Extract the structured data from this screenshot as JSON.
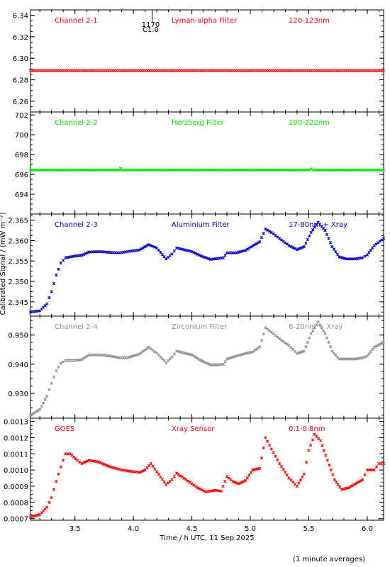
{
  "chart_data": {
    "type": "scatter",
    "xlabel": "Time / h UTC, 11 Sep 2025",
    "ylabel": "Calibrated Signal / (mW m⁻²)",
    "footnote": "(1 minute averages)",
    "x_range": [
      3.12,
      6.14
    ],
    "x_ticks": [
      "3.5",
      "4.0",
      "4.5",
      "5.0",
      "5.5",
      "6.0"
    ],
    "flare_marker": {
      "x": 4.16,
      "labels": [
        "1170",
        "C1.0"
      ]
    },
    "colors": {
      "red": "#ff0000",
      "green": "#00e000",
      "blue": "#0000cc",
      "gray": "#909090"
    },
    "panels": [
      {
        "channel": "Channel 2-1",
        "filter": "Lyman-alpha Filter",
        "band": "120-123nm",
        "color": "#ff0000",
        "ylim": [
          6.25,
          6.345
        ],
        "yticks": [
          "6.26",
          "6.28",
          "6.30",
          "6.32",
          "6.34"
        ],
        "points": [
          [
            3.12,
            6.2885
          ],
          [
            6.14,
            6.2885
          ]
        ]
      },
      {
        "channel": "Channel 2-2",
        "filter": "Herzberg Filter",
        "band": "190-222nm",
        "color": "#00e000",
        "ylim": [
          692.0,
          702.3
        ],
        "yticks": [
          "694",
          "696",
          "698",
          "700",
          "702"
        ],
        "points": [
          [
            3.12,
            696.45
          ],
          [
            3.88,
            696.45
          ],
          [
            3.89,
            696.6
          ],
          [
            3.9,
            696.45
          ],
          [
            5.5,
            696.45
          ],
          [
            5.52,
            696.55
          ],
          [
            5.54,
            696.45
          ],
          [
            6.14,
            696.45
          ]
        ]
      },
      {
        "channel": "Channel 2-3",
        "filter": "Aluminium Filter",
        "band": "17-80nm + Xray",
        "color": "#0000cc",
        "ylim": [
          2.3415,
          2.3665
        ],
        "yticks": [
          "2.345",
          "2.350",
          "2.355",
          "2.360",
          "2.365"
        ],
        "points": [
          [
            3.12,
            2.3425
          ],
          [
            3.2,
            2.3428
          ],
          [
            3.26,
            2.3445
          ],
          [
            3.3,
            2.3475
          ],
          [
            3.34,
            2.3515
          ],
          [
            3.38,
            2.3545
          ],
          [
            3.42,
            2.3558
          ],
          [
            3.5,
            2.3562
          ],
          [
            3.56,
            2.3564
          ],
          [
            3.62,
            2.3572
          ],
          [
            3.72,
            2.3573
          ],
          [
            3.8,
            2.3571
          ],
          [
            3.88,
            2.357
          ],
          [
            3.95,
            2.3573
          ],
          [
            4.05,
            2.3577
          ],
          [
            4.13,
            2.359
          ],
          [
            4.2,
            2.3582
          ],
          [
            4.28,
            2.3555
          ],
          [
            4.33,
            2.3567
          ],
          [
            4.37,
            2.3582
          ],
          [
            4.5,
            2.3573
          ],
          [
            4.58,
            2.3562
          ],
          [
            4.66,
            2.3554
          ],
          [
            4.72,
            2.3556
          ],
          [
            4.77,
            2.3558
          ],
          [
            4.8,
            2.357
          ],
          [
            4.88,
            2.357
          ],
          [
            4.96,
            2.3576
          ],
          [
            5.02,
            2.3587
          ],
          [
            5.08,
            2.3597
          ],
          [
            5.13,
            2.3628
          ],
          [
            5.18,
            2.362
          ],
          [
            5.25,
            2.3605
          ],
          [
            5.33,
            2.3588
          ],
          [
            5.4,
            2.3578
          ],
          [
            5.46,
            2.3585
          ],
          [
            5.52,
            2.362
          ],
          [
            5.58,
            2.3645
          ],
          [
            5.64,
            2.3625
          ],
          [
            5.7,
            2.3585
          ],
          [
            5.76,
            2.356
          ],
          [
            5.82,
            2.3555
          ],
          [
            5.9,
            2.3555
          ],
          [
            5.96,
            2.3558
          ],
          [
            6.0,
            2.3565
          ],
          [
            6.06,
            2.3588
          ],
          [
            6.14,
            2.3605
          ]
        ]
      },
      {
        "channel": "Channel 2-4",
        "filter": "Zirconium Filter",
        "band": "6-20nm + Xray",
        "color": "#909090",
        "ylim": [
          0.9215,
          0.9565
        ],
        "yticks": [
          "0.930",
          "0.940",
          "0.950"
        ],
        "points": [
          [
            3.12,
            0.9225
          ],
          [
            3.2,
            0.9245
          ],
          [
            3.26,
            0.929
          ],
          [
            3.3,
            0.9335
          ],
          [
            3.34,
            0.9378
          ],
          [
            3.38,
            0.9403
          ],
          [
            3.42,
            0.9413
          ],
          [
            3.5,
            0.9413
          ],
          [
            3.56,
            0.9416
          ],
          [
            3.62,
            0.9432
          ],
          [
            3.72,
            0.9432
          ],
          [
            3.8,
            0.9428
          ],
          [
            3.88,
            0.9422
          ],
          [
            3.95,
            0.9422
          ],
          [
            4.05,
            0.9435
          ],
          [
            4.13,
            0.9458
          ],
          [
            4.2,
            0.9438
          ],
          [
            4.28,
            0.9405
          ],
          [
            4.33,
            0.9425
          ],
          [
            4.37,
            0.9445
          ],
          [
            4.5,
            0.9432
          ],
          [
            4.58,
            0.9412
          ],
          [
            4.66,
            0.9398
          ],
          [
            4.72,
            0.9398
          ],
          [
            4.77,
            0.94
          ],
          [
            4.8,
            0.9418
          ],
          [
            4.88,
            0.9428
          ],
          [
            4.96,
            0.9437
          ],
          [
            5.02,
            0.9442
          ],
          [
            5.08,
            0.946
          ],
          [
            5.13,
            0.9525
          ],
          [
            5.18,
            0.951
          ],
          [
            5.25,
            0.9487
          ],
          [
            5.33,
            0.9464
          ],
          [
            5.4,
            0.9437
          ],
          [
            5.46,
            0.9445
          ],
          [
            5.52,
            0.9505
          ],
          [
            5.58,
            0.9545
          ],
          [
            5.64,
            0.9505
          ],
          [
            5.7,
            0.9445
          ],
          [
            5.76,
            0.9418
          ],
          [
            5.82,
            0.9418
          ],
          [
            5.9,
            0.9418
          ],
          [
            5.96,
            0.9422
          ],
          [
            6.0,
            0.9428
          ],
          [
            6.06,
            0.9458
          ],
          [
            6.14,
            0.9475
          ]
        ]
      },
      {
        "channel": "GOES",
        "filter": "Xray Sensor",
        "band": "0.1-0.8nm",
        "color": "#ff0000",
        "ylim": [
          0.00069,
          0.00132
        ],
        "yticks": [
          "0.0007",
          "0.0008",
          "0.0009",
          "0.0010",
          "0.0011",
          "0.0012",
          "0.0013"
        ],
        "points": [
          [
            3.12,
            0.00071
          ],
          [
            3.2,
            0.000725
          ],
          [
            3.26,
            0.00077
          ],
          [
            3.3,
            0.00083
          ],
          [
            3.34,
            0.00093
          ],
          [
            3.38,
            0.00102
          ],
          [
            3.42,
            0.0011
          ],
          [
            3.46,
            0.0011
          ],
          [
            3.52,
            0.00106
          ],
          [
            3.56,
            0.00104
          ],
          [
            3.62,
            0.00106
          ],
          [
            3.7,
            0.00105
          ],
          [
            3.8,
            0.00102
          ],
          [
            3.9,
            0.001
          ],
          [
            4.05,
            0.000985
          ],
          [
            4.1,
            0.001
          ],
          [
            4.15,
            0.00104
          ],
          [
            4.2,
            0.00099
          ],
          [
            4.28,
            0.00091
          ],
          [
            4.33,
            0.00094
          ],
          [
            4.37,
            0.00098
          ],
          [
            4.45,
            0.00094
          ],
          [
            4.55,
            0.00089
          ],
          [
            4.62,
            0.000865
          ],
          [
            4.7,
            0.000875
          ],
          [
            4.75,
            0.00087
          ],
          [
            4.8,
            0.00096
          ],
          [
            4.85,
            0.00093
          ],
          [
            4.9,
            0.000915
          ],
          [
            4.96,
            0.000935
          ],
          [
            5.02,
            0.001
          ],
          [
            5.08,
            0.00101
          ],
          [
            5.13,
            0.0012
          ],
          [
            5.18,
            0.00113
          ],
          [
            5.25,
            0.00104
          ],
          [
            5.33,
            0.00095
          ],
          [
            5.4,
            0.0009
          ],
          [
            5.46,
            0.000975
          ],
          [
            5.5,
            0.00112
          ],
          [
            5.55,
            0.00122
          ],
          [
            5.6,
            0.00118
          ],
          [
            5.66,
            0.00106
          ],
          [
            5.72,
            0.00094
          ],
          [
            5.78,
            0.00088
          ],
          [
            5.84,
            0.00089
          ],
          [
            5.9,
            0.000915
          ],
          [
            5.96,
            0.00094
          ],
          [
            6.0,
            0.001
          ],
          [
            6.06,
            0.001
          ],
          [
            6.1,
            0.00104
          ],
          [
            6.14,
            0.00104
          ]
        ]
      }
    ]
  }
}
